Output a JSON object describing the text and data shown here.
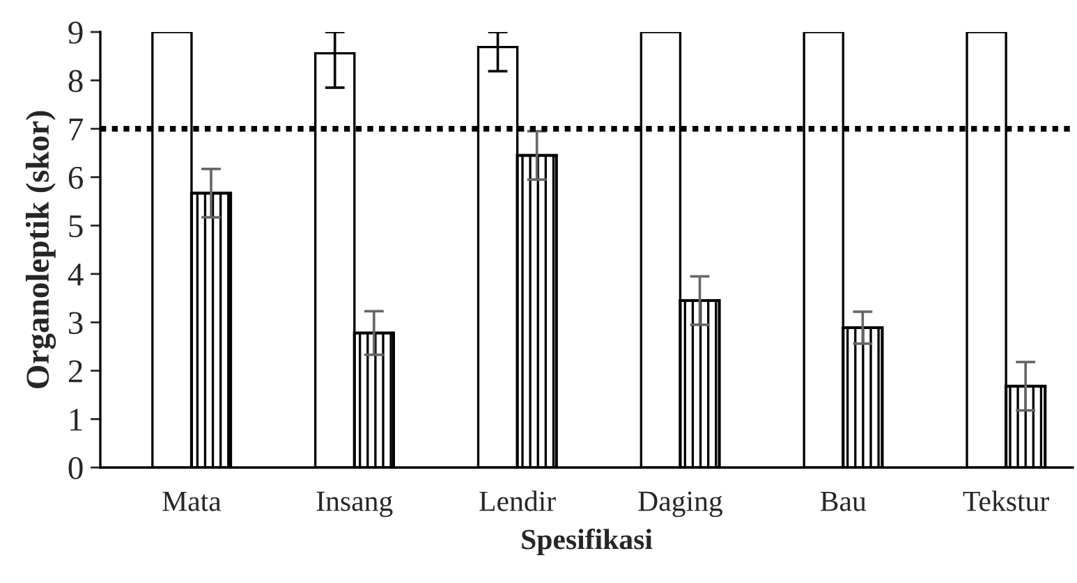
{
  "chart_data": {
    "type": "bar",
    "xlabel": "Spesifikasi",
    "ylabel": "Organoleptik (skor)",
    "categories": [
      "Mata",
      "Insang",
      "Lendir",
      "Daging",
      "Bau",
      "Tekstur"
    ],
    "series": [
      {
        "color": "#ffffff",
        "values": [
          9,
          8.56,
          8.69,
          9,
          9,
          9
        ],
        "errors": [
          null,
          [
            7.85,
            9
          ],
          [
            8.19,
            9
          ],
          null,
          null,
          null
        ]
      },
      {
        "color": "#000000",
        "values": [
          5.67,
          2.78,
          6.45,
          3.45,
          2.89,
          1.68
        ],
        "errors": [
          0.5,
          0.45,
          0.5,
          0.5,
          0.33,
          0.5
        ]
      }
    ],
    "ylim": [
      0,
      9
    ],
    "yticks": [
      0,
      1,
      2,
      3,
      4,
      5,
      6,
      7,
      8,
      9
    ],
    "grid": false,
    "legend": false,
    "ref_lines": [
      {
        "axis": "y",
        "value": 7,
        "line_style": "dotted",
        "color": "#000000"
      }
    ]
  }
}
